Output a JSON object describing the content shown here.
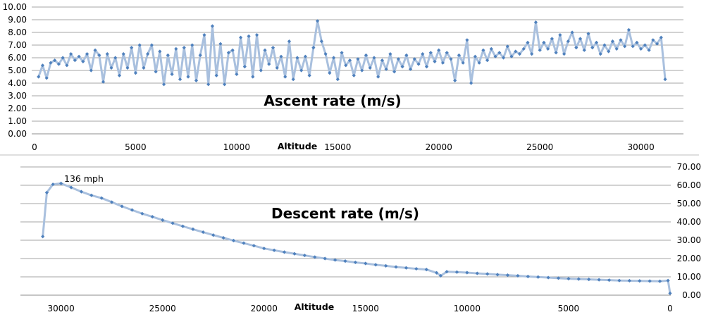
{
  "chart_data": [
    {
      "type": "line",
      "title": "Ascent rate (m/s)",
      "xlabel": "Altitude",
      "ylabel": "",
      "xlim": [
        0,
        32000
      ],
      "ylim": [
        0,
        10
      ],
      "x_ticks": [
        "0",
        "5000",
        "10000",
        "15000",
        "20000",
        "25000",
        "30000"
      ],
      "y_ticks": [
        "0.00",
        "1.00",
        "2.00",
        "3.00",
        "4.00",
        "5.00",
        "6.00",
        "7.00",
        "8.00",
        "9.00",
        "10.00"
      ],
      "grid": true,
      "legend": "none",
      "series": [
        {
          "name": "Ascent rate",
          "color": "#4f81bd",
          "line_color": "#a9c0de",
          "x_start": 200,
          "x_step": 200,
          "y": [
            4.5,
            5.4,
            4.4,
            5.6,
            5.8,
            5.5,
            6.0,
            5.4,
            6.3,
            5.8,
            6.1,
            5.7,
            6.3,
            5.0,
            6.6,
            6.2,
            4.1,
            6.3,
            5.2,
            6.0,
            4.6,
            6.3,
            5.2,
            6.8,
            4.8,
            7.0,
            5.2,
            6.3,
            7.0,
            4.9,
            6.5,
            3.9,
            6.2,
            4.7,
            6.7,
            4.3,
            6.8,
            4.5,
            7.0,
            4.2,
            6.2,
            7.8,
            3.9,
            8.5,
            4.6,
            7.1,
            3.9,
            6.4,
            6.6,
            4.7,
            7.6,
            5.3,
            7.7,
            4.5,
            7.8,
            5.0,
            6.6,
            5.5,
            6.8,
            5.2,
            6.1,
            4.5,
            7.3,
            4.3,
            6.0,
            5.0,
            6.1,
            4.6,
            6.8,
            8.9,
            7.3,
            6.3,
            4.8,
            6.0,
            4.3,
            6.4,
            5.4,
            5.8,
            4.6,
            5.9,
            5.0,
            6.2,
            5.2,
            6.0,
            4.5,
            5.8,
            5.1,
            6.3,
            4.9,
            5.9,
            5.3,
            6.2,
            5.1,
            5.9,
            5.5,
            6.3,
            5.3,
            6.4,
            5.7,
            6.6,
            5.6,
            6.4,
            5.9,
            4.2,
            6.2,
            5.6,
            7.4,
            4.0,
            6.1,
            5.6,
            6.6,
            5.8,
            6.7,
            6.1,
            6.4,
            6.0,
            6.9,
            6.1,
            6.5,
            6.3,
            6.7,
            7.2,
            6.3,
            8.8,
            6.6,
            7.2,
            6.7,
            7.5,
            6.4,
            7.8,
            6.3,
            7.3,
            8.0,
            6.8,
            7.5,
            6.6,
            7.9,
            6.8,
            7.2,
            6.3,
            7.0,
            6.5,
            7.3,
            6.7,
            7.4,
            6.9,
            8.2,
            6.9,
            7.2,
            6.7,
            7.0,
            6.6,
            7.4,
            7.1,
            7.6,
            4.3
          ]
        }
      ]
    },
    {
      "type": "line",
      "title": "Descent rate (m/s)",
      "xlabel": "Altitude",
      "ylabel": "",
      "x_reversed": true,
      "xlim": [
        32000,
        0
      ],
      "ylim": [
        0,
        70
      ],
      "x_ticks": [
        "30000",
        "25000",
        "20000",
        "15000",
        "10000",
        "5000",
        "0"
      ],
      "y_ticks": [
        "0.00",
        "10.00",
        "20.00",
        "30.00",
        "40.00",
        "50.00",
        "60.00",
        "70.00"
      ],
      "y_axis_side": "right",
      "grid": true,
      "legend": "none",
      "annotations": [
        {
          "text": "136 mph",
          "x": 30000,
          "y": 61
        }
      ],
      "series": [
        {
          "name": "Descent rate",
          "color": "#4f81bd",
          "line_color": "#a9c0de",
          "x": [
            30900,
            30700,
            30400,
            30000,
            29500,
            29000,
            28500,
            28000,
            27500,
            27000,
            26500,
            26000,
            25500,
            25000,
            24500,
            24000,
            23500,
            23000,
            22500,
            22000,
            21500,
            21000,
            20500,
            20000,
            19500,
            19000,
            18500,
            18000,
            17500,
            17000,
            16500,
            16000,
            15500,
            15000,
            14500,
            14000,
            13500,
            13000,
            12500,
            12000,
            11500,
            11300,
            11000,
            10500,
            10000,
            9500,
            9000,
            8500,
            8000,
            7500,
            7000,
            6500,
            6000,
            5500,
            5000,
            4500,
            4000,
            3500,
            3000,
            2500,
            2000,
            1500,
            1000,
            500,
            100,
            0
          ],
          "y": [
            32,
            56,
            60.5,
            61,
            58.8,
            56.5,
            54.5,
            53,
            50.8,
            48.5,
            46.5,
            44.5,
            42.8,
            41,
            39.3,
            37.6,
            36,
            34.4,
            32.8,
            31.3,
            29.8,
            28.4,
            27,
            25.5,
            24.5,
            23.5,
            22.6,
            21.7,
            20.8,
            20,
            19.2,
            18.6,
            17.9,
            17.3,
            16.6,
            16.0,
            15.4,
            14.9,
            14.4,
            14.0,
            12.2,
            10.6,
            12.8,
            12.6,
            12.3,
            11.9,
            11.6,
            11.2,
            10.9,
            10.6,
            10.2,
            9.9,
            9.6,
            9.3,
            9.0,
            8.8,
            8.6,
            8.4,
            8.2,
            8.0,
            7.9,
            7.8,
            7.7,
            7.6,
            8.0,
            1.0
          ]
        }
      ]
    }
  ]
}
